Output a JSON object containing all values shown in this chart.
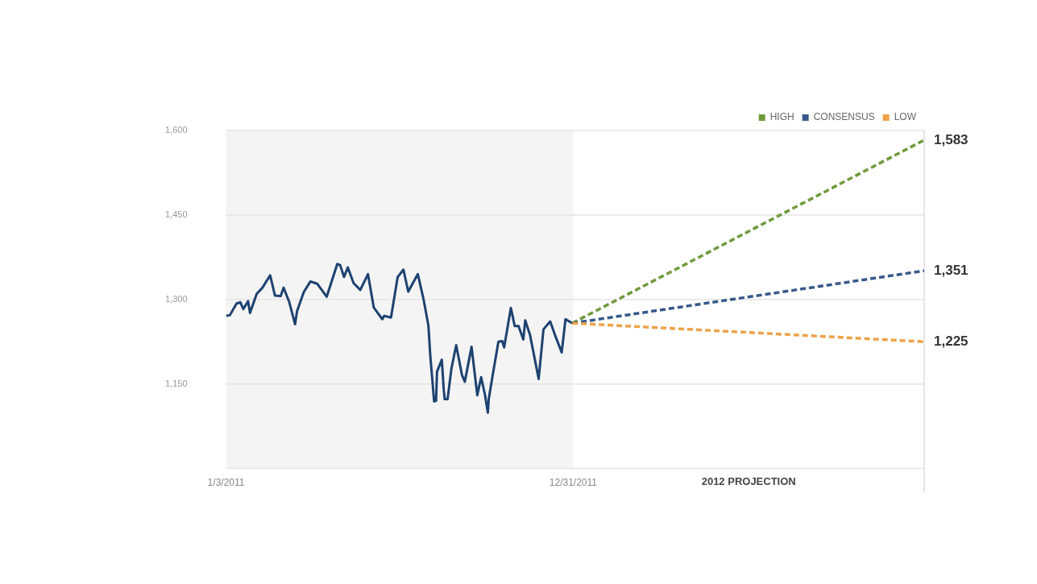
{
  "chart_data": {
    "type": "line",
    "series": [
      {
        "color": "#1d4270",
        "x": [
          "2011-01-03",
          "2011-01-07",
          "2011-01-14",
          "2011-01-18",
          "2011-01-21",
          "2011-01-26",
          "2011-01-28",
          "2011-02-04",
          "2011-02-10",
          "2011-02-18",
          "2011-02-23",
          "2011-03-01",
          "2011-03-04",
          "2011-03-10",
          "2011-03-16",
          "2011-03-18",
          "2011-03-25",
          "2011-04-01",
          "2011-04-08",
          "2011-04-18",
          "2011-04-29",
          "2011-05-02",
          "2011-05-06",
          "2011-05-10",
          "2011-05-16",
          "2011-05-23",
          "2011-05-31",
          "2011-06-06",
          "2011-06-15",
          "2011-06-17",
          "2011-06-24",
          "2011-07-01",
          "2011-07-07",
          "2011-07-12",
          "2011-07-22",
          "2011-07-28",
          "2011-08-02",
          "2011-08-04",
          "2011-08-08",
          "2011-08-10",
          "2011-08-11",
          "2011-08-16",
          "2011-08-18",
          "2011-08-19",
          "2011-08-22",
          "2011-08-26",
          "2011-08-31",
          "2011-09-06",
          "2011-09-09",
          "2011-09-16",
          "2011-09-22",
          "2011-09-26",
          "2011-09-30",
          "2011-10-03",
          "2011-10-04",
          "2011-10-07",
          "2011-10-14",
          "2011-10-18",
          "2011-10-20",
          "2011-10-27",
          "2011-10-31",
          "2011-11-04",
          "2011-11-09",
          "2011-11-11",
          "2011-11-16",
          "2011-11-25",
          "2011-11-30",
          "2011-12-07",
          "2011-12-12",
          "2011-12-19",
          "2011-12-23",
          "2011-12-30"
        ],
        "values": [
          1271,
          1272,
          1293,
          1295,
          1283,
          1297,
          1276,
          1310,
          1321,
          1343,
          1307,
          1306,
          1321,
          1295,
          1256,
          1279,
          1313,
          1332,
          1328,
          1305,
          1363,
          1361,
          1340,
          1357,
          1329,
          1317,
          1345,
          1286,
          1265,
          1271,
          1268,
          1340,
          1353,
          1314,
          1345,
          1300,
          1254,
          1200,
          1119,
          1120,
          1172,
          1193,
          1140,
          1123,
          1123,
          1177,
          1219,
          1166,
          1154,
          1216,
          1130,
          1162,
          1131,
          1099,
          1124,
          1155,
          1225,
          1226,
          1215,
          1285,
          1253,
          1253,
          1229,
          1263,
          1237,
          1159,
          1247,
          1261,
          1237,
          1206,
          1265,
          1258
        ]
      },
      {
        "name": "HIGH",
        "color": "#6f9a3c",
        "line_style": "dashed",
        "x": [
          "2011-12-30",
          "2012-12-31"
        ],
        "values": [
          1258,
          1583
        ],
        "value_labels": [
          null,
          "1,583"
        ]
      },
      {
        "name": "CONSENSUS",
        "color": "#37598a",
        "line_style": "dashed",
        "x": [
          "2011-12-30",
          "2012-12-31"
        ],
        "values": [
          1258,
          1351
        ],
        "value_labels": [
          null,
          "1,351"
        ]
      },
      {
        "name": "LOW",
        "color": "#eea24a",
        "line_style": "dashed",
        "x": [
          "2011-12-30",
          "2012-12-31"
        ],
        "values": [
          1258,
          1225
        ],
        "value_labels": [
          null,
          "1,225"
        ]
      }
    ],
    "xlim": [
      "2011-01-03",
      "2012-12-31"
    ],
    "xticks": [
      {
        "value": "2011-01-03",
        "label": "1/3/2011"
      },
      {
        "value": "2011-12-31",
        "label": "12/31/2011"
      }
    ],
    "ylim": [
      1000,
      1600
    ],
    "yticks": [
      {
        "value": 1150,
        "label": "1,150"
      },
      {
        "value": 1300,
        "label": "1,300"
      },
      {
        "value": 1450,
        "label": "1,450"
      },
      {
        "value": 1600,
        "label": "1,600"
      }
    ],
    "bands": [
      {
        "axis": "x",
        "from": "2011-01-03",
        "to": "2011-12-31",
        "color": "#f4f4f4"
      }
    ],
    "annotations": [
      "2012 PROJECTION"
    ],
    "ref_lines": [
      {
        "axis": "x",
        "value": "2012-12-31",
        "color": "#dddddd"
      }
    ],
    "grid": "y",
    "legend": "top right",
    "marker": "none"
  }
}
